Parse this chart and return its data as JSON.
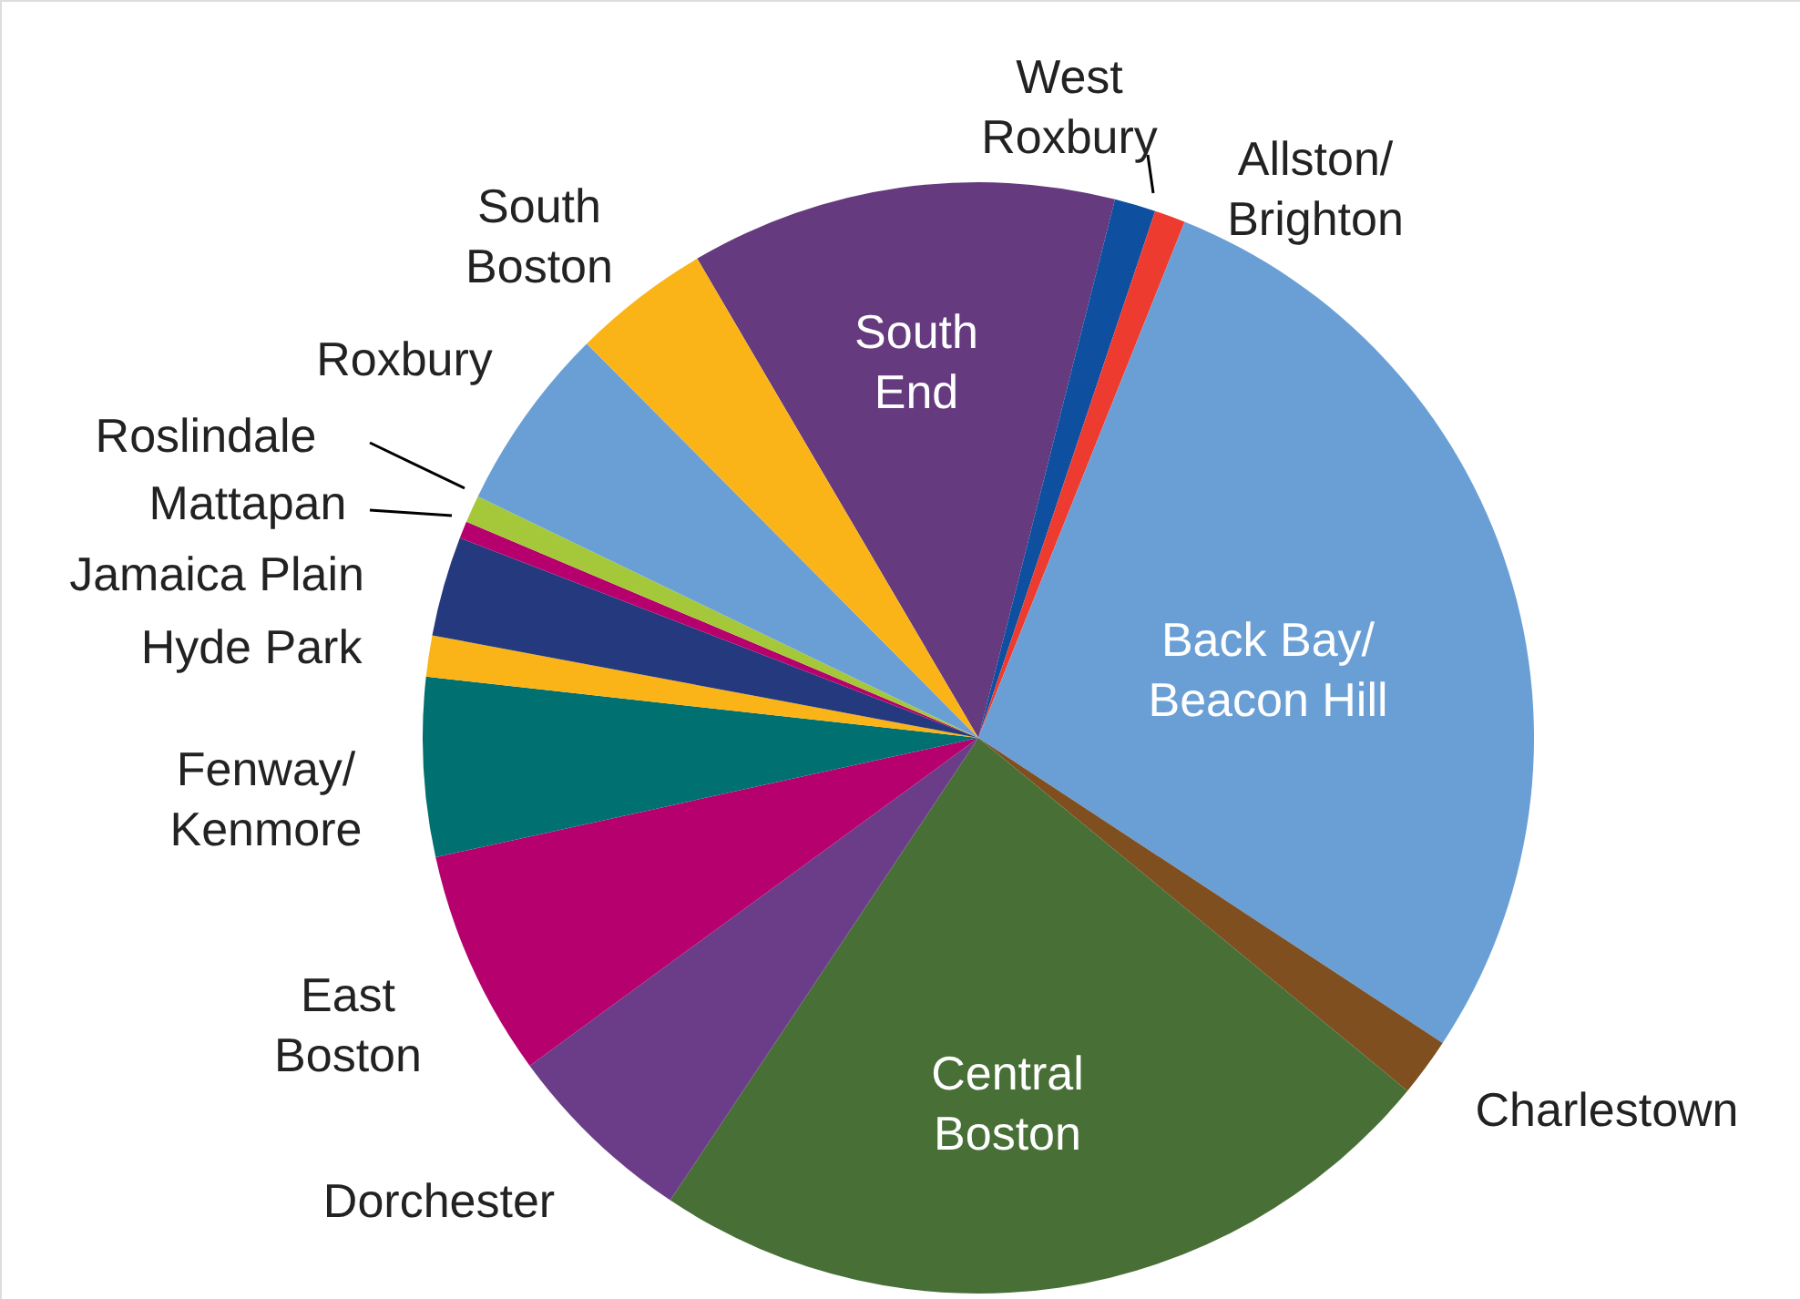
{
  "chart_data": {
    "type": "pie",
    "categories": [
      "South\nEnd",
      "West\nRoxbury",
      "Allston/\nBrighton",
      "Back Bay/\nBeacon Hill",
      "Charlestown",
      "Central\nBoston",
      "Dorchester",
      "East\nBoston",
      "Fenway/\nKenmore",
      "Hyde Park",
      "Jamaica Plain",
      "Mattapan",
      "Roslindale",
      "Roxbury",
      "South\nBoston"
    ],
    "values": [
      12.4,
      1.2,
      0.9,
      28.2,
      1.7,
      23.4,
      5.6,
      6.6,
      5.2,
      1.2,
      2.9,
      0.5,
      0.8,
      5.4,
      4.0
    ],
    "colors": [
      "#653a7e",
      "#0e4fa0",
      "#ee3b2f",
      "#6a9fd6",
      "#7f4f1f",
      "#476f36",
      "#6b3d88",
      "#b5006d",
      "#007070",
      "#fbb417",
      "#253a7e",
      "#b5006d",
      "#a5c83b",
      "#6a9fd6",
      "#fbb417"
    ]
  }
}
